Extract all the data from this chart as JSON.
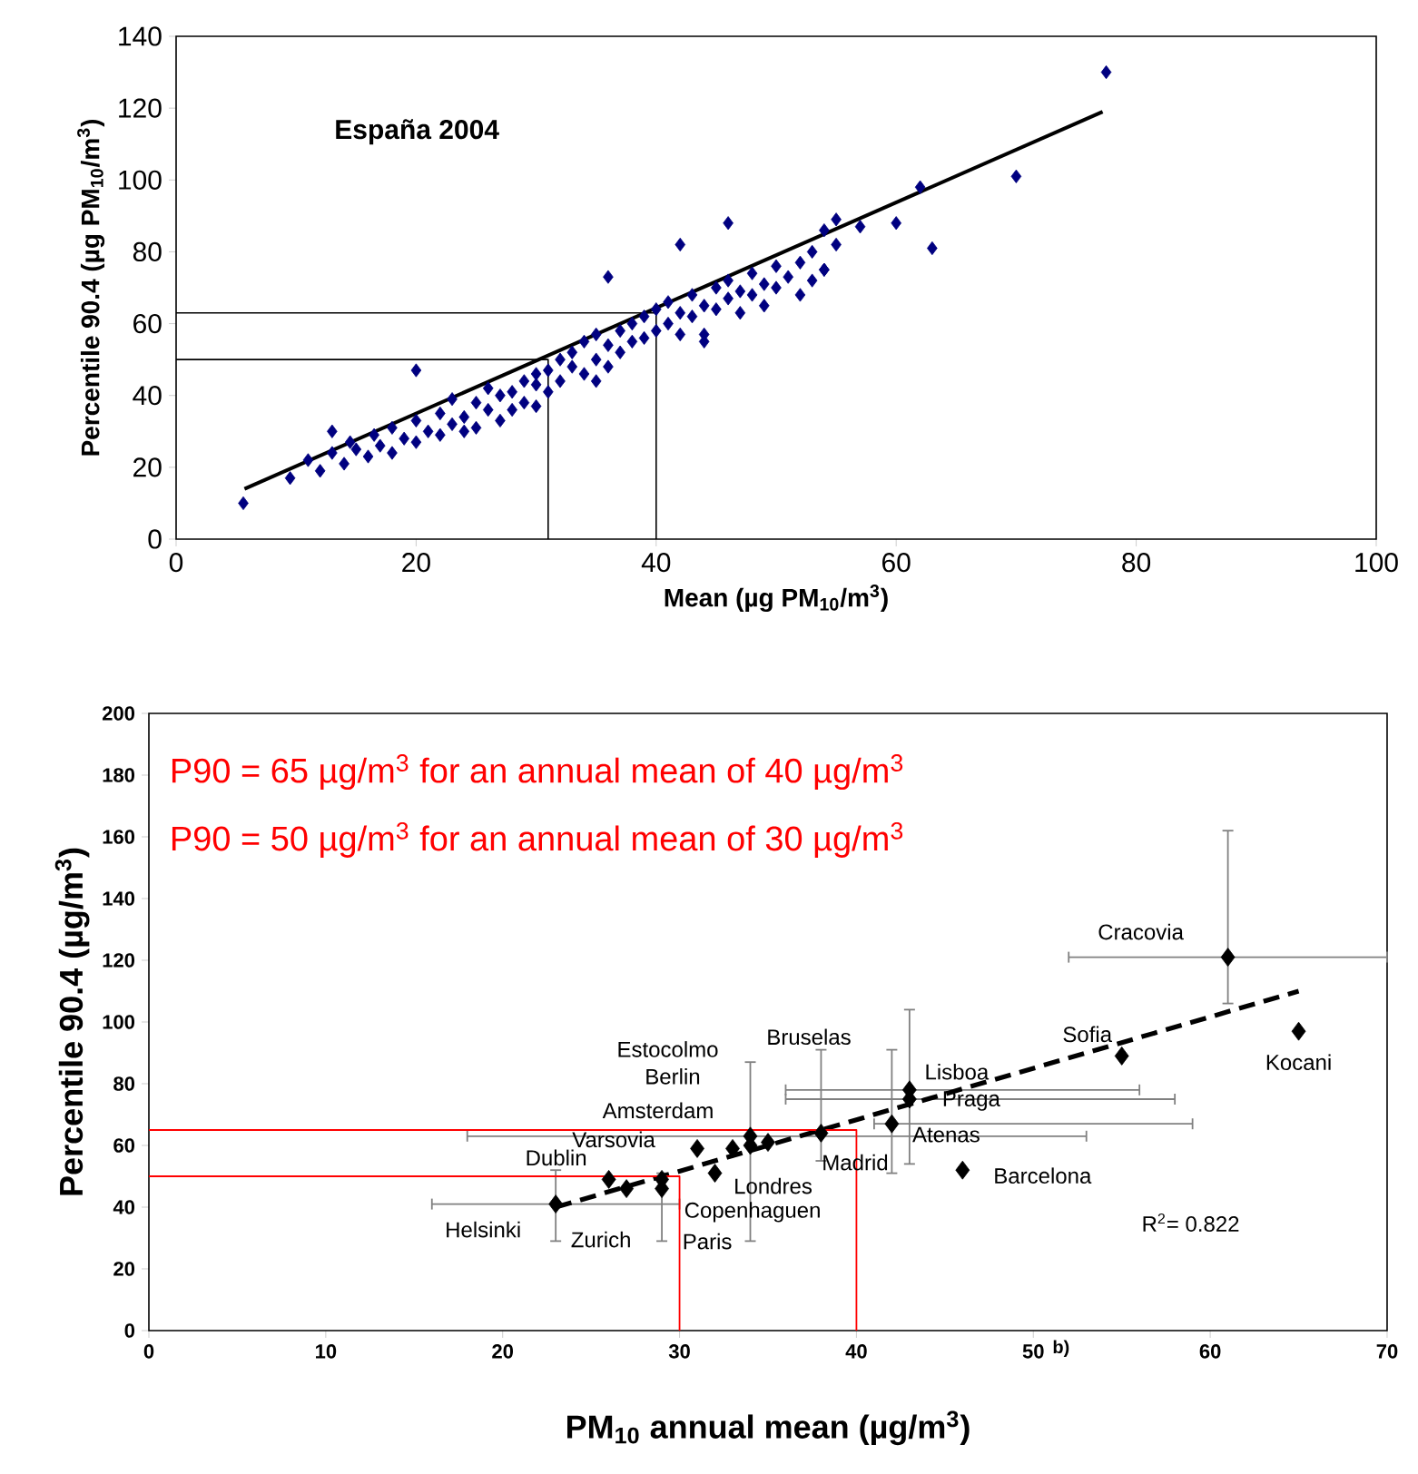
{
  "chart_data": [
    {
      "type": "scatter",
      "xlabel": "Mean (µg PM$_{10}$/m$^{3}$)",
      "ylabel": "Percentile 90.4 (µg PM$_{10}$/m$^{3}$)",
      "xlim": [
        0,
        100
      ],
      "ylim": [
        0,
        140
      ],
      "xticks": [
        0,
        20,
        40,
        60,
        80,
        100
      ],
      "yticks": [
        0,
        20,
        40,
        60,
        80,
        100,
        120,
        140
      ],
      "annotations": [
        "España 2004"
      ],
      "series": [
        {
          "type": "scatter",
          "color": "#000080",
          "marker": "diamond",
          "x": [
            5.6,
            9.5,
            11,
            12,
            13,
            13,
            14,
            14.5,
            15,
            16,
            16.5,
            17,
            18,
            18,
            19,
            20,
            20,
            20,
            21,
            22,
            22,
            23,
            23,
            24,
            24,
            25,
            25,
            26,
            26,
            27,
            27,
            28,
            28,
            29,
            29,
            30,
            30,
            30,
            31,
            31,
            32,
            32,
            33,
            33,
            34,
            34,
            35,
            35,
            35,
            36,
            36,
            36,
            37,
            37,
            38,
            38,
            39,
            39,
            40,
            40,
            41,
            41,
            42,
            42,
            42,
            43,
            43,
            44,
            44,
            44,
            45,
            45,
            46,
            46,
            46,
            47,
            47,
            48,
            48,
            49,
            49,
            50,
            50,
            51,
            52,
            52,
            53,
            53,
            54,
            54,
            54,
            55,
            55,
            57,
            60,
            62,
            63,
            70,
            77.5
          ],
          "values": [
            10,
            17,
            22,
            19,
            24,
            30,
            21,
            27,
            25,
            23,
            29,
            26,
            31,
            24,
            28,
            33,
            27,
            47,
            30,
            35,
            29,
            39,
            32,
            34,
            30,
            38,
            31,
            36,
            42,
            40,
            33,
            41,
            36,
            44,
            38,
            43,
            46,
            37,
            47,
            41,
            50,
            44,
            48,
            52,
            46,
            55,
            50,
            57,
            44,
            54,
            48,
            73,
            58,
            52,
            60,
            55,
            62,
            56,
            64,
            58,
            60,
            66,
            63,
            57,
            82,
            68,
            62,
            65,
            55,
            57,
            70,
            64,
            67,
            72,
            88,
            69,
            63,
            74,
            68,
            71,
            65,
            76,
            70,
            73,
            77,
            68,
            80,
            72,
            75,
            86,
            75,
            89,
            82,
            87,
            88,
            98,
            81,
            101,
            130
          ]
        },
        {
          "type": "line",
          "color": "#000000",
          "marker": "none",
          "x": [
            5.7,
            77.2
          ],
          "values": [
            14,
            119
          ]
        },
        {
          "type": "line",
          "color": "#000000",
          "marker": "none",
          "x": [
            0,
            31,
            31
          ],
          "values": [
            50,
            50,
            0
          ]
        },
        {
          "type": "line",
          "color": "#000000",
          "marker": "none",
          "x": [
            0,
            40,
            40
          ],
          "values": [
            63,
            63,
            0
          ]
        }
      ]
    },
    {
      "type": "scatter",
      "xlabel": "PM$_{10}$ annual mean (µg/m$^{3}$)",
      "ylabel": "Percentile 90.4 (µg/m$^{3}$)",
      "xlim": [
        0,
        70
      ],
      "ylim": [
        0,
        200
      ],
      "xticks": [
        0,
        10,
        20,
        30,
        40,
        50,
        60,
        70
      ],
      "yticks": [
        0,
        20,
        40,
        60,
        80,
        100,
        120,
        140,
        160,
        180,
        200
      ],
      "annotations": [
        "P90 = 65 µg/m$^{3}$ for an annual mean of 40 µg/m$^{3}$",
        "P90 = 50 µg/m$^{3}$ for an annual mean of 30 µg/m$^{3}$",
        "R$^{2}$= 0.822",
        "b)",
        "Estocolmo",
        "Berlin",
        "Bruselas",
        {
          "text": "Helsinki",
          "x": 23,
          "y": 41
        },
        {
          "text": "Zurich",
          "x": 27,
          "y": 46
        },
        {
          "text": "Paris",
          "x": 29,
          "y": 46
        },
        {
          "text": "Copenhaguen",
          "x": 29,
          "y": 49
        },
        {
          "text": "Dublin",
          "x": 26,
          "y": 49
        },
        {
          "text": "Londres",
          "x": 32,
          "y": 51
        },
        {
          "text": "Varsovia",
          "x": 31,
          "y": 59
        },
        {
          "text": "Amsterdam",
          "x": 33,
          "y": 59
        },
        {
          "text": "Madrid",
          "x": 35,
          "y": 61
        },
        {
          "text": "Atenas",
          "x": 42,
          "y": 67
        },
        {
          "text": "Praga",
          "x": 43,
          "y": 75
        },
        {
          "text": "Lisboa",
          "x": 43,
          "y": 78
        },
        {
          "text": "Barcelona",
          "x": 46,
          "y": 52
        },
        {
          "text": "Sofia",
          "x": 55,
          "y": 89
        },
        {
          "text": "Cracovia",
          "x": 61,
          "y": 121
        },
        {
          "text": "Kocani",
          "x": 65,
          "y": 97
        }
      ],
      "series": [
        {
          "type": "scatter",
          "color": "#000000",
          "marker": "diamond",
          "x": [
            23,
            27,
            29,
            29,
            26,
            32,
            31,
            33,
            34,
            34,
            38,
            35,
            42,
            43,
            43,
            46,
            55,
            61,
            65
          ],
          "values": [
            41,
            46,
            46,
            49,
            49,
            51,
            59,
            59,
            60,
            63,
            64,
            61,
            67,
            75,
            78,
            52,
            89,
            121,
            97
          ],
          "errors": [
            [
              29,
              52
            ],
            null,
            [
              29,
              51
            ],
            null,
            null,
            null,
            null,
            null,
            null,
            [
              29,
              87
            ],
            [
              55,
              91
            ],
            null,
            [
              51,
              91
            ],
            null,
            [
              54,
              104
            ],
            null,
            null,
            [
              106,
              162
            ],
            null
          ],
          "xerrors": [
            [
              16,
              30
            ],
            null,
            null,
            null,
            null,
            null,
            null,
            null,
            null,
            [
              18,
              53
            ],
            null,
            null,
            [
              41,
              59
            ],
            [
              36,
              58
            ],
            [
              36,
              56
            ],
            null,
            null,
            [
              52,
              70
            ],
            null
          ]
        },
        {
          "type": "line",
          "color": "#000000",
          "marker": "none",
          "line_style": "dashed",
          "x": [
            23,
            65
          ],
          "values": [
            40,
            110
          ]
        },
        {
          "type": "line",
          "color": "#ff0000",
          "marker": "none",
          "x": [
            0,
            30,
            30
          ],
          "values": [
            50,
            50,
            0
          ]
        },
        {
          "type": "line",
          "color": "#ff0000",
          "marker": "none",
          "x": [
            0,
            40,
            40
          ],
          "values": [
            65,
            65,
            0
          ]
        }
      ]
    }
  ]
}
